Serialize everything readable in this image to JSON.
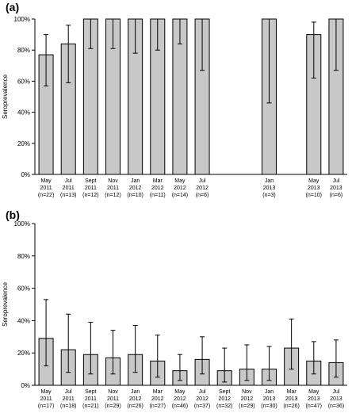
{
  "chart_data": [
    {
      "type": "bar",
      "panel": "(a)",
      "ylabel": "Seroprevalence",
      "ylim": [
        0,
        100
      ],
      "yticks": [
        "0%",
        "20%",
        "40%",
        "60%",
        "80%",
        "100%"
      ],
      "categories": [
        {
          "lines": [
            "May",
            "2011",
            "(n=22)"
          ],
          "value": 77,
          "err_low": 57,
          "err_high": 90
        },
        {
          "lines": [
            "Jul",
            "2011",
            "(n=13)"
          ],
          "value": 84,
          "err_low": 59,
          "err_high": 96
        },
        {
          "lines": [
            "Sept",
            "2011",
            "(n=12)"
          ],
          "value": 100,
          "err_low": 81,
          "err_high": 100
        },
        {
          "lines": [
            "Nov",
            "2011",
            "(n=12)"
          ],
          "value": 100,
          "err_low": 81,
          "err_high": 100
        },
        {
          "lines": [
            "Jan",
            "2012",
            "(n=10)"
          ],
          "value": 100,
          "err_low": 78,
          "err_high": 100
        },
        {
          "lines": [
            "Mar",
            "2012",
            "(n=11)"
          ],
          "value": 100,
          "err_low": 80,
          "err_high": 100
        },
        {
          "lines": [
            "May",
            "2012",
            "(n=14)"
          ],
          "value": 100,
          "err_low": 84,
          "err_high": 100
        },
        {
          "lines": [
            "Jul",
            "2012",
            "(n=6)"
          ],
          "value": 100,
          "err_low": 67,
          "err_high": 100
        },
        {
          "lines": [],
          "value": null
        },
        {
          "lines": [],
          "value": null
        },
        {
          "lines": [
            "Jan",
            "2013",
            "(n=3)"
          ],
          "value": 100,
          "err_low": 46,
          "err_high": 100
        },
        {
          "lines": [],
          "value": null
        },
        {
          "lines": [
            "May",
            "2013",
            "(n=10)"
          ],
          "value": 90,
          "err_low": 62,
          "err_high": 98
        },
        {
          "lines": [
            "Jul",
            "2013",
            "(n=6)"
          ],
          "value": 100,
          "err_low": 67,
          "err_high": 100
        }
      ]
    },
    {
      "type": "bar",
      "panel": "(b)",
      "ylabel": "Seroprevalence",
      "ylim": [
        0,
        100
      ],
      "yticks": [
        "0%",
        "20%",
        "40%",
        "60%",
        "80%",
        "100%"
      ],
      "categories": [
        {
          "lines": [
            "May",
            "2011",
            "(n=17)"
          ],
          "value": 29,
          "err_low": 12,
          "err_high": 53
        },
        {
          "lines": [
            "Jul",
            "2011",
            "(n=18)"
          ],
          "value": 22,
          "err_low": 8,
          "err_high": 44
        },
        {
          "lines": [
            "Sept",
            "2011",
            "(n=21)"
          ],
          "value": 19,
          "err_low": 7,
          "err_high": 39
        },
        {
          "lines": [
            "Nov",
            "2011",
            "(n=29)"
          ],
          "value": 17,
          "err_low": 7,
          "err_high": 34
        },
        {
          "lines": [
            "Jan",
            "2012",
            "(n=26)"
          ],
          "value": 19,
          "err_low": 8,
          "err_high": 37
        },
        {
          "lines": [
            "Mar",
            "2012",
            "(n=27)"
          ],
          "value": 15,
          "err_low": 5,
          "err_high": 31
        },
        {
          "lines": [
            "May",
            "2012",
            "(n=46)"
          ],
          "value": 9,
          "err_low": 3,
          "err_high": 19
        },
        {
          "lines": [
            "Jul",
            "2012",
            "(n=37)"
          ],
          "value": 16,
          "err_low": 7,
          "err_high": 30
        },
        {
          "lines": [
            "Sept",
            "2012",
            "(n=32)"
          ],
          "value": 9,
          "err_low": 2,
          "err_high": 23
        },
        {
          "lines": [
            "Nov",
            "2012",
            "(n=29)"
          ],
          "value": 10,
          "err_low": 3,
          "err_high": 25
        },
        {
          "lines": [
            "Jan",
            "2013",
            "(n=30)"
          ],
          "value": 10,
          "err_low": 3,
          "err_high": 24
        },
        {
          "lines": [
            "Mar",
            "2013",
            "(n=26)"
          ],
          "value": 23,
          "err_low": 10,
          "err_high": 41
        },
        {
          "lines": [
            "May",
            "2013",
            "(n=47)"
          ],
          "value": 15,
          "err_low": 7,
          "err_high": 27
        },
        {
          "lines": [
            "Jul",
            "2013",
            "(n=36)"
          ],
          "value": 14,
          "err_low": 5,
          "err_high": 28
        }
      ]
    }
  ]
}
